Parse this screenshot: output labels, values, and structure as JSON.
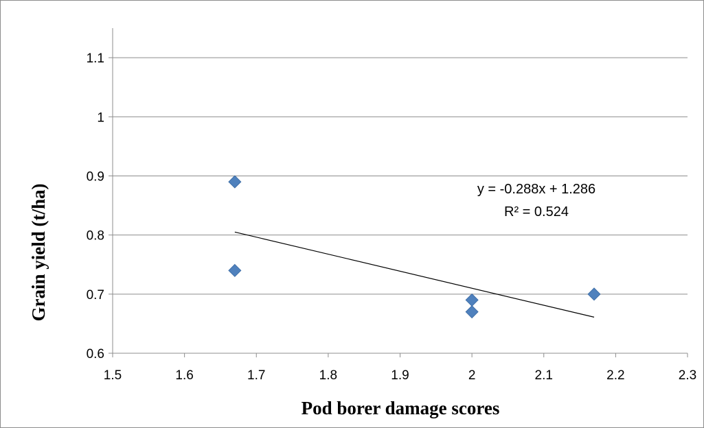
{
  "chart_data": {
    "type": "scatter",
    "xlabel": "Pod borer damage scores",
    "ylabel": "Grain yield (t/ha)",
    "xlim": [
      1.5,
      2.3
    ],
    "ylim": [
      0.6,
      1.15
    ],
    "x_ticks": [
      "1.5",
      "1.6",
      "1.7",
      "1.8",
      "1.9",
      "2",
      "2.1",
      "2.2",
      "2.3"
    ],
    "y_ticks": [
      "0.6",
      "0.7",
      "0.8",
      "0.9",
      "1",
      "1.1"
    ],
    "grid": "horizontal",
    "series": [
      {
        "marker": "diamond",
        "color": "#4f81bd",
        "points": [
          {
            "x": 1.67,
            "y": 0.89
          },
          {
            "x": 1.67,
            "y": 0.74
          },
          {
            "x": 2.0,
            "y": 0.69
          },
          {
            "x": 2.0,
            "y": 0.67
          },
          {
            "x": 2.17,
            "y": 0.7
          }
        ]
      }
    ],
    "trendline": {
      "type": "linear",
      "slope": -0.288,
      "intercept": 1.286,
      "x_range": [
        1.67,
        2.17
      ],
      "color": "#000000",
      "equation_label": "y = -0.288x + 1.286",
      "r2_label": "R² = 0.524"
    }
  }
}
